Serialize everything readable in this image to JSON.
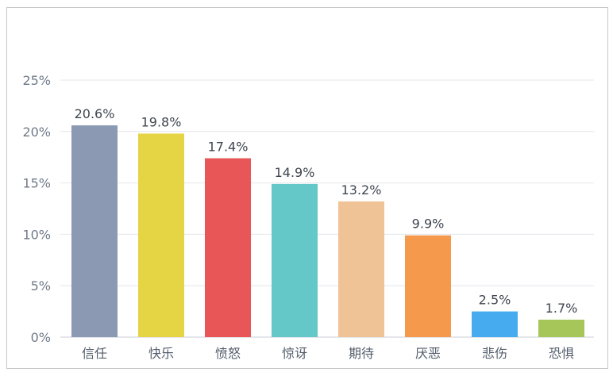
{
  "chart_data": {
    "type": "bar",
    "title": "",
    "xlabel": "",
    "ylabel": "",
    "ylim": [
      0,
      25
    ],
    "yticks": [
      "0%",
      "5%",
      "10%",
      "15%",
      "20%",
      "25%"
    ],
    "grid": true,
    "categories": [
      "信任",
      "快乐",
      "愤怒",
      "惊讶",
      "期待",
      "厌恶",
      "悲伤",
      "恐惧"
    ],
    "values": [
      20.6,
      19.8,
      17.4,
      14.9,
      13.2,
      9.9,
      2.5,
      1.7
    ],
    "data_labels": [
      "20.6%",
      "19.8%",
      "17.4%",
      "14.9%",
      "13.2%",
      "9.9%",
      "2.5%",
      "1.7%"
    ],
    "colors": [
      "#8b99b3",
      "#e5d444",
      "#e85657",
      "#64c8c9",
      "#f0c396",
      "#f59a4d",
      "#46acef",
      "#a6c65a"
    ]
  }
}
